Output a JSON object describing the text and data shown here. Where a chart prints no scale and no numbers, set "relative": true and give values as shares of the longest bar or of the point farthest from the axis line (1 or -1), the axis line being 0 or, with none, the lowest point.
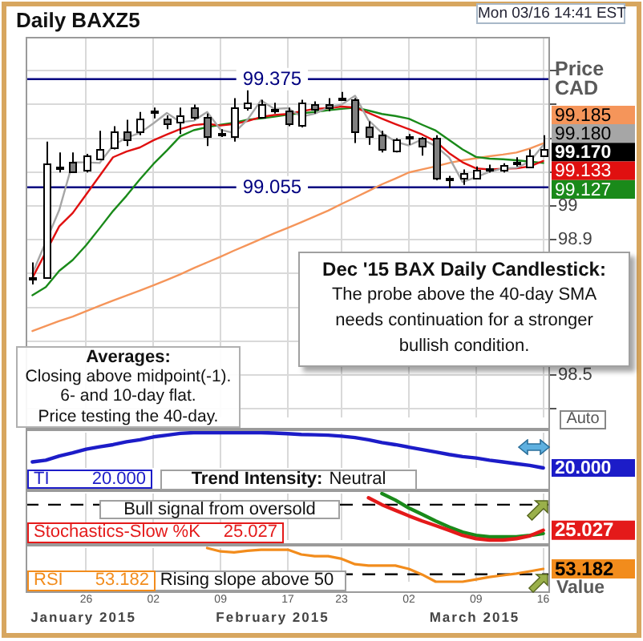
{
  "chart_data": [
    {
      "type": "candlestick",
      "title": "Daily BAXZ5",
      "ylabel": "Price CAD",
      "categories": [
        null,
        null,
        null,
        null,
        null,
        null,
        null,
        null,
        null,
        null,
        null,
        null,
        null,
        null,
        null,
        null,
        null,
        null,
        null,
        null,
        null,
        null,
        null,
        null,
        null,
        null,
        null,
        null,
        null,
        null,
        null,
        null,
        null,
        null,
        null,
        null,
        null,
        null,
        null
      ],
      "ohlc": [
        [
          98.787,
          98.833,
          98.768,
          98.79
        ],
        [
          98.79,
          99.19,
          98.785,
          99.126
        ],
        [
          99.115,
          99.158,
          99.099,
          99.112
        ],
        [
          99.131,
          99.158,
          99.099,
          99.103
        ],
        [
          99.108,
          99.154,
          99.099,
          99.149
        ],
        [
          99.14,
          99.222,
          99.135,
          99.167
        ],
        [
          99.172,
          99.236,
          99.167,
          99.222
        ],
        [
          99.222,
          99.255,
          99.177,
          99.195
        ],
        [
          99.222,
          99.278,
          99.209,
          99.259
        ],
        [
          99.28,
          99.291,
          99.259,
          99.282
        ],
        [
          99.259,
          99.268,
          99.227,
          99.245
        ],
        [
          99.25,
          99.291,
          99.213,
          99.268
        ],
        [
          99.291,
          99.3,
          99.255,
          99.264
        ],
        [
          99.264,
          99.273,
          99.177,
          99.204
        ],
        [
          99.214,
          99.227,
          99.204,
          99.218
        ],
        [
          99.204,
          99.319,
          99.19,
          99.291
        ],
        [
          99.291,
          99.342,
          99.282,
          99.305
        ],
        [
          99.264,
          99.314,
          99.259,
          99.3
        ],
        [
          99.285,
          99.305,
          99.273,
          99.287
        ],
        [
          99.282,
          99.291,
          99.236,
          99.245
        ],
        [
          99.241,
          99.314,
          99.232,
          99.305
        ],
        [
          99.3,
          99.309,
          99.273,
          99.287
        ],
        [
          99.3,
          99.319,
          99.28,
          99.29
        ],
        [
          99.314,
          99.337,
          99.314,
          99.319
        ],
        [
          99.314,
          99.319,
          99.186,
          99.222
        ],
        [
          99.236,
          99.25,
          99.181,
          99.204
        ],
        [
          99.213,
          99.222,
          99.158,
          99.167
        ],
        [
          99.163,
          99.2,
          99.158,
          99.195
        ],
        [
          99.202,
          99.213,
          99.181,
          99.204
        ],
        [
          99.2,
          99.204,
          99.149,
          99.177
        ],
        [
          99.2,
          99.209,
          99.076,
          99.085
        ],
        [
          99.085,
          99.089,
          99.053,
          99.076
        ],
        [
          99.085,
          99.108,
          99.062,
          99.099
        ],
        [
          99.085,
          99.117,
          99.085,
          99.108
        ],
        [
          99.11,
          99.122,
          99.099,
          99.113
        ],
        [
          99.108,
          99.126,
          99.099,
          99.122
        ],
        [
          99.129,
          99.144,
          99.117,
          99.131
        ],
        [
          99.117,
          99.167,
          99.113,
          99.149
        ],
        [
          99.149,
          99.209,
          99.149,
          99.17
        ]
      ],
      "colors": [
        "#ffffff",
        "#ffffff",
        "#808080",
        "#808080",
        "#ffffff",
        "#ffffff",
        "#ffffff",
        "#808080",
        "#ffffff",
        "#ffffff",
        "#808080",
        "#ffffff",
        "#808080",
        "#808080",
        "#ffffff",
        "#ffffff",
        "#ffffff",
        "#ffffff",
        "#ffffff",
        "#808080",
        "#ffffff",
        "#808080",
        "#808080",
        "#ffffff",
        "#808080",
        "#808080",
        "#808080",
        "#ffffff",
        "#ffffff",
        "#808080",
        "#808080",
        "#808080",
        "#ffffff",
        "#ffffff",
        "#ffffff",
        "#ffffff",
        "#ffffff",
        "#ffffff",
        "#ffffff"
      ],
      "series": [
        {
          "type": "line",
          "color": "#a6a6a6",
          "values": [
            98.8,
            null,
            98.988,
            99.129,
            99.129,
            99.127,
            99.179,
            99.202,
            99.216,
            99.244,
            99.275,
            99.248,
            99.252,
            99.278,
            99.225,
            99.216,
            99.255,
            99.312,
            99.287,
            99.289,
            99.264,
            99.273,
            99.291,
            99.3,
            99.326,
            99.253,
            99.216,
            99.19,
            99.179,
            99.197,
            99.177,
            99.143,
            99.071,
            99.085,
            99.101,
            99.111,
            99.113,
            99.131,
            99.18
          ],
          "value_labels": [
            null,
            null,
            null,
            null,
            null,
            null,
            null,
            null,
            null,
            null,
            null,
            null,
            null,
            null,
            null,
            null,
            null,
            null,
            null,
            null,
            null,
            null,
            null,
            null,
            null,
            null,
            null,
            null,
            null,
            null,
            null,
            null,
            null,
            null,
            null,
            null,
            null,
            null,
            "99.180"
          ]
        },
        {
          "type": "line",
          "color": "#e01010",
          "values": [
            98.787,
            null,
            98.94,
            98.979,
            99.034,
            99.089,
            99.144,
            99.161,
            99.173,
            99.194,
            99.211,
            99.227,
            99.239,
            99.243,
            99.238,
            99.242,
            99.251,
            99.263,
            99.269,
            99.272,
            99.28,
            99.287,
            99.289,
            99.294,
            99.291,
            99.275,
            99.258,
            99.242,
            99.227,
            99.211,
            99.191,
            99.156,
            99.129,
            99.111,
            99.108,
            99.11,
            99.111,
            99.117,
            99.133
          ],
          "value_labels": [
            null,
            null,
            null,
            null,
            null,
            null,
            null,
            null,
            null,
            null,
            null,
            null,
            null,
            null,
            null,
            null,
            null,
            null,
            null,
            null,
            null,
            null,
            null,
            null,
            null,
            null,
            null,
            null,
            null,
            null,
            null,
            null,
            null,
            null,
            null,
            null,
            null,
            null,
            "99.133"
          ]
        },
        {
          "type": "line",
          "color": "#1a8a1a",
          "values": [
            98.736,
            98.76,
            98.808,
            98.84,
            98.884,
            98.934,
            98.985,
            99.03,
            99.079,
            99.124,
            99.164,
            99.206,
            99.224,
            99.233,
            99.24,
            99.246,
            99.255,
            99.259,
            99.264,
            99.27,
            99.274,
            99.278,
            99.283,
            99.287,
            99.291,
            99.282,
            99.272,
            99.266,
            99.258,
            99.24,
            99.223,
            99.195,
            99.167,
            99.145,
            99.14,
            99.138,
            99.135,
            99.131,
            99.127
          ],
          "value_labels": [
            null,
            null,
            null,
            null,
            null,
            null,
            null,
            null,
            null,
            null,
            null,
            null,
            null,
            null,
            null,
            null,
            null,
            null,
            null,
            null,
            null,
            null,
            null,
            null,
            null,
            null,
            null,
            null,
            null,
            null,
            null,
            null,
            null,
            null,
            null,
            null,
            null,
            null,
            "99.127"
          ]
        },
        {
          "type": "line",
          "color": "#f5955a",
          "values": [
            98.63,
            98.645,
            98.66,
            98.673,
            98.689,
            98.705,
            98.72,
            98.735,
            98.75,
            98.765,
            98.781,
            98.798,
            98.816,
            98.833,
            98.85,
            98.868,
            98.885,
            98.902,
            98.919,
            98.935,
            98.952,
            98.969,
            98.986,
            99.006,
            99.025,
            99.044,
            99.064,
            99.081,
            99.099,
            99.108,
            99.117,
            99.127,
            99.135,
            99.141,
            99.147,
            99.152,
            99.158,
            99.17,
            99.185
          ],
          "value_labels": [
            null,
            null,
            null,
            null,
            null,
            null,
            null,
            null,
            null,
            null,
            null,
            null,
            null,
            null,
            null,
            null,
            null,
            null,
            null,
            null,
            null,
            null,
            null,
            null,
            null,
            null,
            null,
            null,
            null,
            null,
            null,
            null,
            null,
            null,
            null,
            null,
            null,
            null,
            "99.185"
          ]
        }
      ],
      "ylim": [
        98.375,
        99.5
      ],
      "yticks": [
        {
          "value": 99.4,
          "label": null
        },
        {
          "value": 99.3,
          "label": null
        },
        {
          "value": 99.2,
          "label": null
        },
        {
          "value": 99.1,
          "label": null
        },
        99,
        98.9,
        {
          "value": 98.8,
          "label": null
        },
        {
          "value": 98.7,
          "label": null
        },
        {
          "value": 98.6,
          "label": null
        },
        98.5,
        {
          "value": 98.4,
          "label": null
        }
      ],
      "ref_lines": [
        {
          "axis": "y",
          "value": 99.375,
          "label": "99.375",
          "color": "#000080"
        },
        {
          "axis": "y",
          "value": 99.055,
          "label": "99.055",
          "color": "#000080"
        }
      ],
      "grid": true,
      "tick_labels": "y",
      "annotations": [
        "Averages:",
        "Closing above midpoint(-1).\n6- and 10-day flat.\nPrice testing the 40-day.",
        "Dec '15 BAX Daily Candlestick:",
        "The probe above the 40-day SMA\nneeds continuation for a stronger\nbullish condition.",
        "Mon 03/16 14:41 EST",
        "Auto",
        "99.170"
      ]
    },
    {
      "type": "line",
      "relative": true,
      "categories": [
        null,
        null,
        null,
        null,
        null,
        null,
        null,
        null,
        null,
        null,
        null,
        null,
        null,
        null,
        null,
        null,
        null,
        null,
        null,
        null,
        null,
        null,
        null,
        null,
        null,
        null,
        null,
        null,
        null,
        null,
        null,
        null,
        null,
        null,
        null,
        null,
        null,
        null,
        null
      ],
      "series": [
        {
          "name": "TI",
          "color": "#1c1cc8",
          "values": [
            0.17,
            0.22,
            0.34,
            0.43,
            0.53,
            0.6,
            0.66,
            0.74,
            0.8,
            0.88,
            0.93,
            0.98,
            1,
            1,
            1,
            1,
            1,
            1,
            0.99,
            0.97,
            0.95,
            0.94,
            0.93,
            0.9,
            0.86,
            0.8,
            0.72,
            0.66,
            0.59,
            0.52,
            0.45,
            0.38,
            0.32,
            0.28,
            0.22,
            0.17,
            0.12,
            0.07,
            0
          ]
        }
      ],
      "grid": "x",
      "tick_labels": false,
      "legend": "bottom left",
      "annotations": [
        "Trend Intensity:",
        "Neutral",
        "20.000",
        "20.000"
      ]
    },
    {
      "type": "line",
      "relative": true,
      "categories": [
        null,
        null,
        null,
        null,
        null,
        null,
        null,
        null,
        null,
        null,
        null,
        null,
        null,
        null,
        null,
        null,
        null,
        null,
        null,
        null,
        null,
        null,
        null,
        null,
        null,
        null,
        null,
        null,
        null,
        null,
        null,
        null,
        null,
        null,
        null,
        null,
        null,
        null,
        null
      ],
      "series": [
        {
          "name": "Stochastics-Slow %K",
          "color": "#e41a1a",
          "values": [
            null,
            null,
            null,
            null,
            null,
            null,
            null,
            null,
            null,
            null,
            null,
            null,
            null,
            null,
            null,
            null,
            null,
            null,
            null,
            null,
            null,
            null,
            null,
            null,
            null,
            0.91,
            0.76,
            0.64,
            0.52,
            0.41,
            0.31,
            0.21,
            0.1,
            0.03,
            0,
            0,
            0.03,
            0.09,
            0.21
          ]
        },
        {
          "color": "#1a8a1a",
          "values": [
            null,
            null,
            null,
            null,
            null,
            null,
            null,
            null,
            null,
            null,
            null,
            null,
            null,
            null,
            null,
            null,
            null,
            null,
            null,
            null,
            null,
            null,
            null,
            null,
            null,
            null,
            1,
            0.86,
            0.69,
            0.55,
            0.41,
            0.28,
            0.17,
            0.1,
            0.07,
            0.07,
            0.07,
            0.1,
            0.14
          ]
        }
      ],
      "ref_lines": [
        {
          "axis": "y",
          "value": 0.76,
          "color": "#000000",
          "line_style": "dashed"
        }
      ],
      "grid": "x",
      "tick_labels": false,
      "legend": "bottom left",
      "annotations": [
        "Bull signal from oversold",
        "25.027",
        "25.027"
      ]
    },
    {
      "type": "line",
      "relative": true,
      "ylabel": "Value",
      "categories": [
        null,
        null,
        null,
        null,
        "26",
        null,
        null,
        null,
        null,
        "02",
        null,
        null,
        null,
        null,
        "09",
        null,
        null,
        null,
        null,
        "17",
        null,
        null,
        null,
        "23",
        null,
        null,
        null,
        null,
        "02",
        null,
        null,
        null,
        null,
        "09",
        null,
        null,
        null,
        null,
        "16"
      ],
      "series": [
        {
          "name": "RSI",
          "color": "#f28c1c",
          "values": [
            null,
            null,
            null,
            null,
            null,
            null,
            null,
            null,
            null,
            null,
            null,
            null,
            null,
            1,
            0.9,
            0.87,
            0.92,
            0.95,
            0.95,
            0.95,
            0.81,
            0.76,
            0.76,
            0.68,
            0.52,
            0.48,
            0.48,
            0.48,
            0.38,
            0.21,
            0,
            0,
            0,
            0.07,
            0.14,
            0.19,
            0.24,
            0.31,
            0.38
          ]
        }
      ],
      "ref_lines": [
        {
          "axis": "y",
          "value": 0.22,
          "color": "#000000",
          "line_style": "dashed"
        }
      ],
      "grid": "x",
      "tick_labels": "x",
      "legend": "bottom left",
      "annotations": [
        "Rising slope above 50",
        "53.182",
        "53.182",
        "January 2015",
        "February 2015",
        "March 2015"
      ]
    }
  ]
}
